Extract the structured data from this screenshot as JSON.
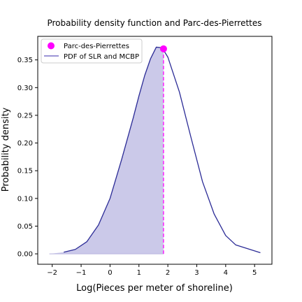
{
  "chart_data": {
    "type": "line",
    "title": "Probability density function and Parc-des-Pierrettes",
    "xlabel": "Log(Pieces per meter of shoreline)",
    "ylabel": "Probability density",
    "xlim": [
      -2.5,
      5.6
    ],
    "ylim": [
      -0.0188,
      0.3925
    ],
    "x_ticks": [
      -2,
      -1,
      0,
      1,
      2,
      3,
      4,
      5
    ],
    "y_ticks": [
      0.0,
      0.05,
      0.1,
      0.15,
      0.2,
      0.25,
      0.3,
      0.35
    ],
    "x_tick_labels": [
      "−2",
      "−1",
      "0",
      "1",
      "2",
      "3",
      "4",
      "5"
    ],
    "y_tick_labels": [
      "0.00",
      "0.05",
      "0.10",
      "0.15",
      "0.20",
      "0.25",
      "0.30",
      "0.35"
    ],
    "grid": false,
    "legend_position": "top-left",
    "series": [
      {
        "name": "PDF of SLR and MCBP",
        "kind": "line",
        "color": "#2b2b96",
        "x": [
          -1.6,
          -1.2,
          -0.8,
          -0.4,
          0.0,
          0.4,
          0.8,
          1.0,
          1.2,
          1.4,
          1.6,
          1.8,
          2.0,
          2.4,
          2.8,
          3.2,
          3.6,
          4.0,
          4.35,
          5.2
        ],
        "y": [
          0.003,
          0.008,
          0.022,
          0.052,
          0.1,
          0.17,
          0.245,
          0.285,
          0.322,
          0.352,
          0.373,
          0.372,
          0.355,
          0.292,
          0.21,
          0.13,
          0.072,
          0.033,
          0.016,
          0.002
        ]
      },
      {
        "name": "Parc-des-Pierrettes",
        "kind": "point",
        "color": "#ff00ff",
        "x": 1.85,
        "y": 0.37
      }
    ],
    "shaded_region": {
      "from_x": -2.1,
      "to_x": 1.85,
      "color": "#c8c6e8"
    },
    "vertical_line": {
      "x": 1.85,
      "color": "#ff00ff",
      "style": "dashed"
    }
  }
}
